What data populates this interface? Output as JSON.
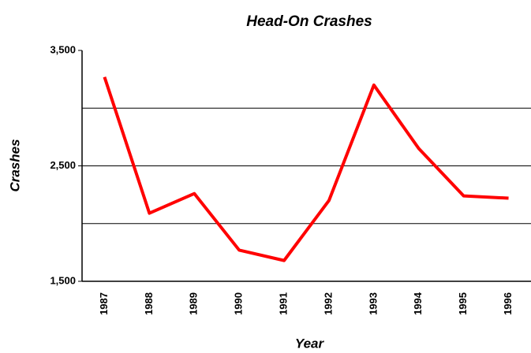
{
  "chart_data": {
    "type": "line",
    "title": "Head-On Crashes",
    "x_label": "Year",
    "y_label": "Crashes",
    "categories": [
      "1987",
      "1988",
      "1989",
      "1990",
      "1991",
      "1992",
      "1993",
      "1994",
      "1995",
      "1996"
    ],
    "series": [
      {
        "name": "Crashes",
        "color": "#ff0000",
        "values": [
          3270,
          2090,
          2260,
          1770,
          1680,
          2200,
          3200,
          2650,
          2240,
          2220
        ]
      }
    ],
    "ylim": [
      1500,
      3500
    ],
    "yticks": [
      {
        "value": 1500,
        "label": "1,500"
      },
      {
        "value": 2500,
        "label": "2,500"
      },
      {
        "value": 3500,
        "label": "3,500"
      }
    ],
    "ygrid": [
      2000,
      2500,
      3000
    ],
    "grid": true,
    "legend": false
  }
}
